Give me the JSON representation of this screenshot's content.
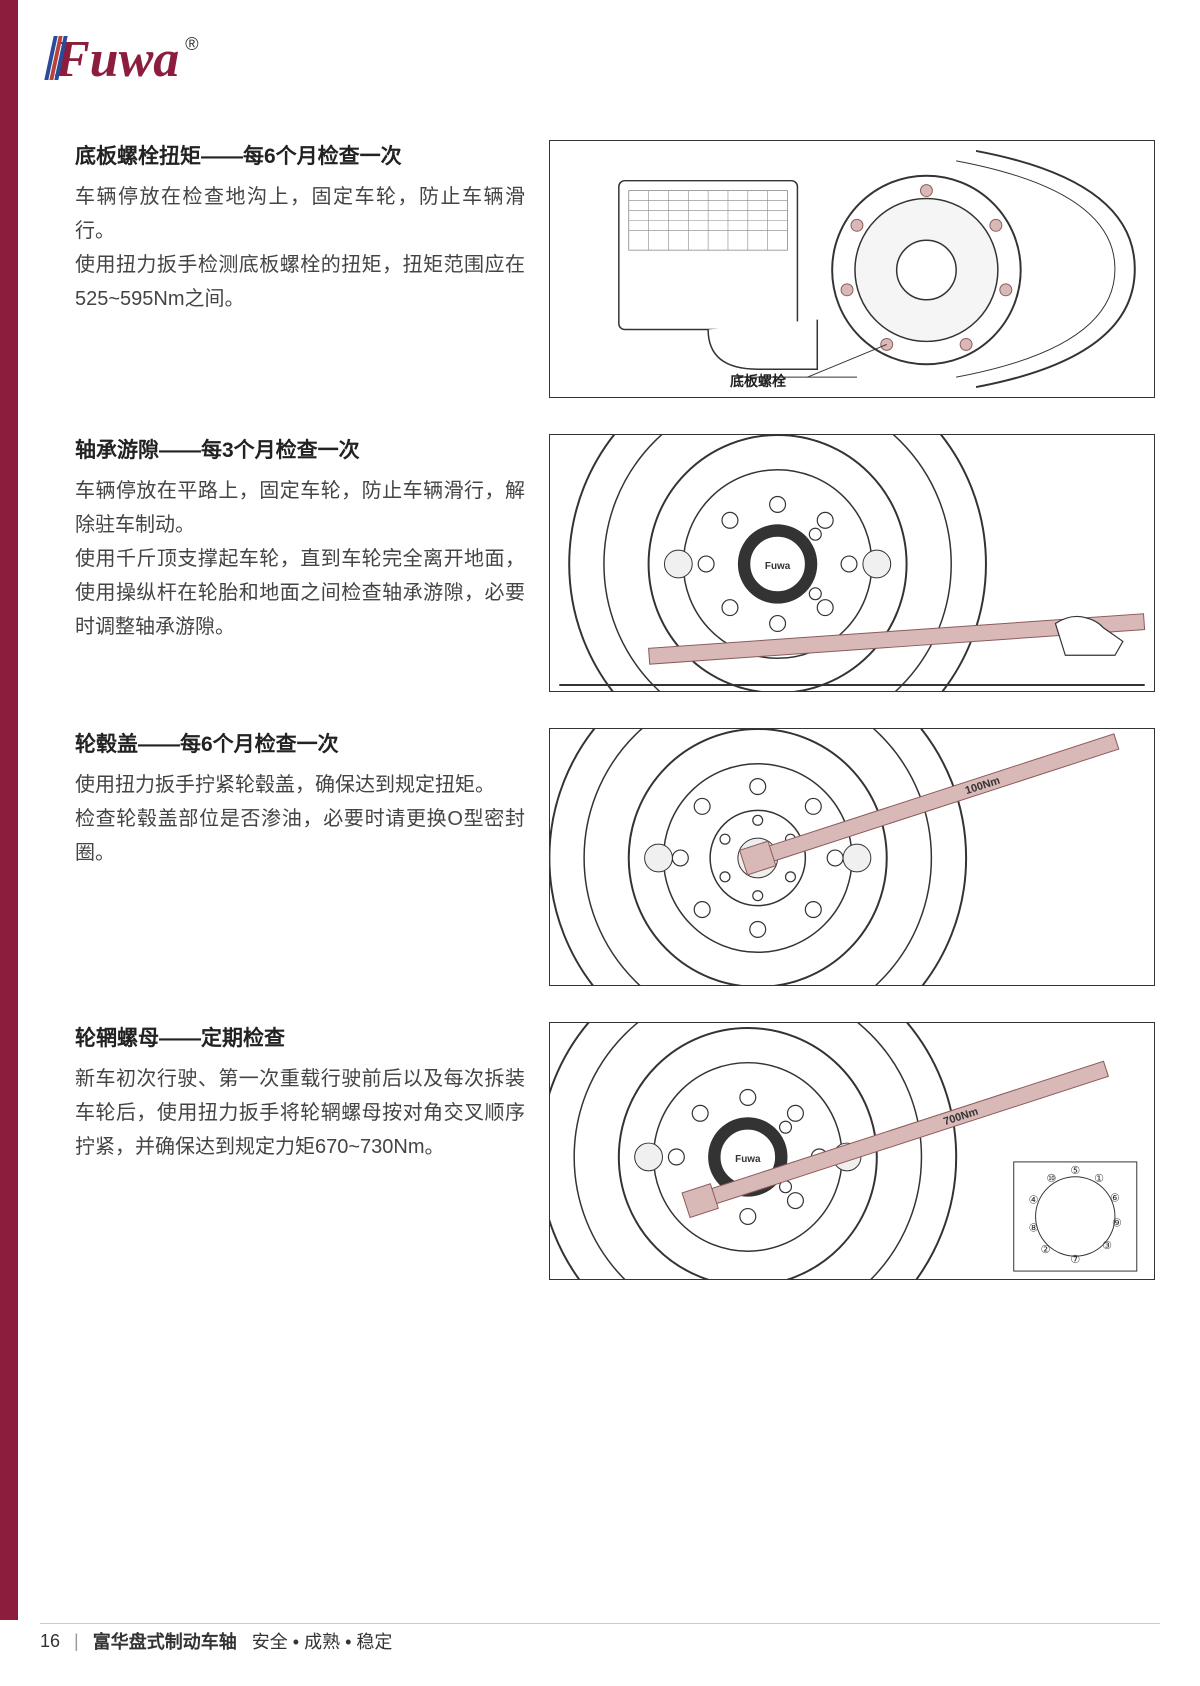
{
  "logo": {
    "text": "Fuwa",
    "registered": "®"
  },
  "red_bar_color": "#8c1d3c",
  "sections": [
    {
      "title": "底板螺栓扭矩——每6个月检查一次",
      "body": "车辆停放在检查地沟上，固定车轮，防止车辆滑行。\n使用扭力扳手检测底板螺栓的扭矩，扭矩范围应在525~595Nm之间。",
      "image_label": "底板螺栓",
      "diagram_type": "brake-assembly"
    },
    {
      "title": "轴承游隙——每3个月检查一次",
      "body": "车辆停放在平路上，固定车轮，防止车辆滑行，解除驻车制动。\n使用千斤顶支撑起车轮，直到车轮完全离开地面，使用操纵杆在轮胎和地面之间检查轴承游隙，必要时调整轴承游隙。",
      "diagram_type": "wheel-lever",
      "hub_text": "Fuwa"
    },
    {
      "title": "轮毂盖——每6个月检查一次",
      "body": "使用扭力扳手拧紧轮毂盖，确保达到规定扭矩。\n检查轮毂盖部位是否渗油，必要时请更换O型密封圈。",
      "diagram_type": "wheel-torque-center",
      "torque_label": "100Nm"
    },
    {
      "title": "轮辋螺母——定期检查",
      "body": "新车初次行驶、第一次重载行驶前后以及每次拆装车轮后，使用扭力扳手将轮辋螺母按对角交叉顺序拧紧，并确保达到规定力矩670~730Nm。",
      "diagram_type": "wheel-torque-nut",
      "torque_label": "700Nm",
      "hub_text": "Fuwa",
      "sequence_numbers": [
        "①",
        "②",
        "③",
        "④",
        "⑤",
        "⑥",
        "⑦",
        "⑧",
        "⑨",
        "⑩"
      ]
    }
  ],
  "footer": {
    "page": "16",
    "text_prefix": "富华盘式制动车轴",
    "text_suffix": "安全 • 成熟 • 稳定"
  },
  "colors": {
    "text": "#333333",
    "title": "#222222",
    "body": "#444444",
    "tool_fill": "#d9b8b8",
    "tool_stroke": "#8c5a5a",
    "line": "#333333"
  }
}
